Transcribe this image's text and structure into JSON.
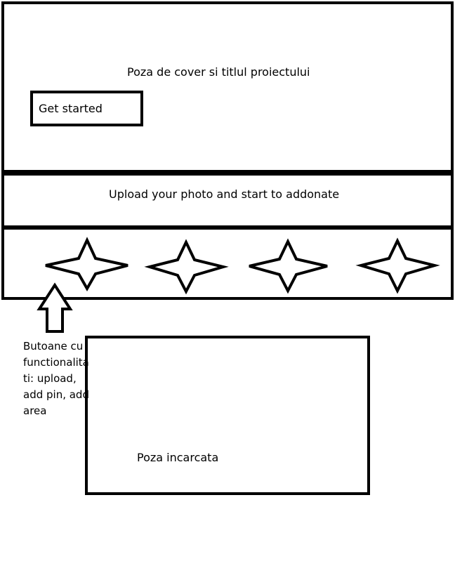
{
  "cover": {
    "title": "Poza de cover si titlul proiectului",
    "button_label": "Get started"
  },
  "upload_banner": {
    "text": "Upload your photo and start to addonate"
  },
  "toolbar": {
    "icons": [
      "star-icon",
      "star-icon",
      "star-icon",
      "star-icon"
    ]
  },
  "annotation": {
    "lines": [
      "Butoane cu",
      "functionalita",
      "ti: upload,",
      "add pin, add",
      "area"
    ],
    "arrow_icon": "arrow-up-icon"
  },
  "uploaded_photo": {
    "label": "Poza incarcata"
  }
}
